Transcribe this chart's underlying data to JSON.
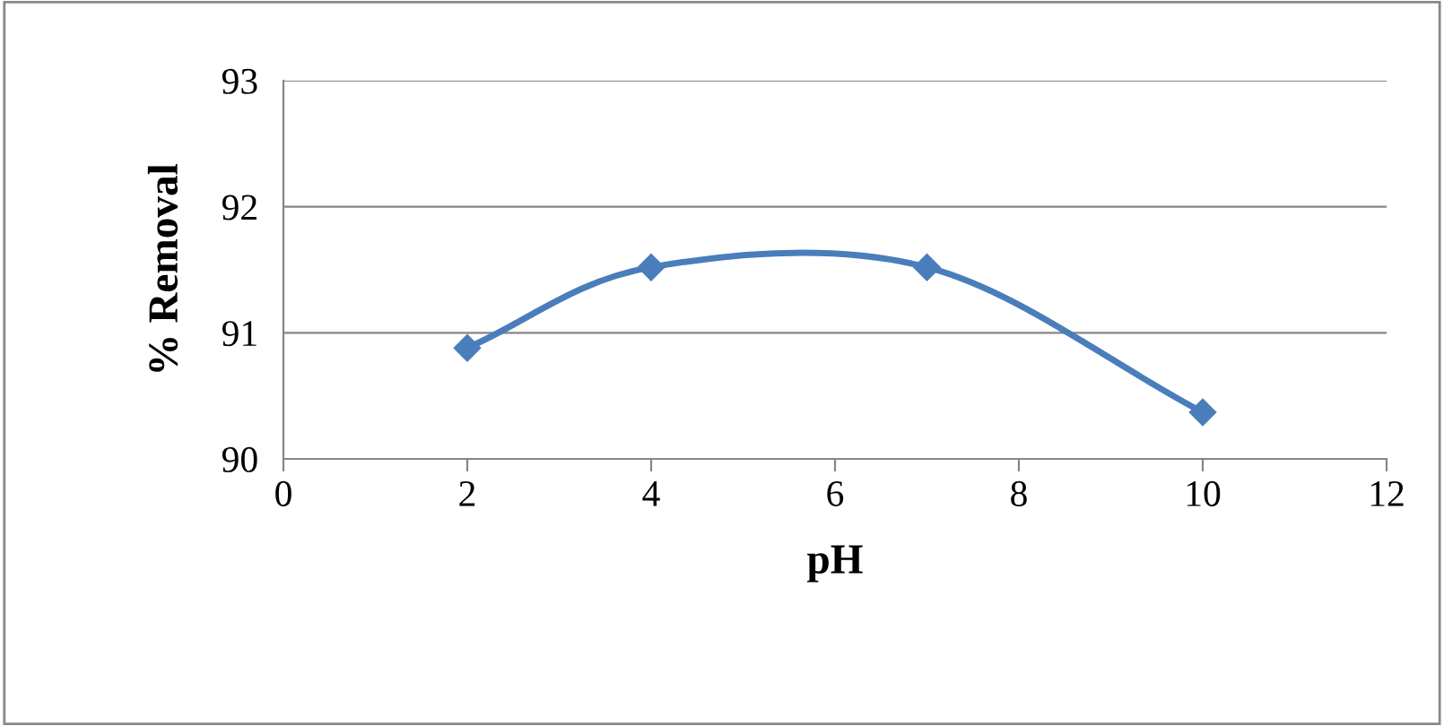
{
  "chart_data": {
    "type": "line",
    "xlabel": "pH",
    "ylabel": "% Removal",
    "x": [
      2,
      4,
      7,
      10
    ],
    "series": [
      {
        "color": "#4a7ebb",
        "values": [
          90.88,
          91.52,
          91.52,
          90.37
        ]
      }
    ],
    "xlim": [
      0,
      12
    ],
    "xticks": [
      0,
      2,
      4,
      6,
      8,
      10,
      12
    ],
    "ylim": [
      90,
      93
    ],
    "yticks": [
      90,
      91,
      92,
      93
    ],
    "grid": "y",
    "marker": "diamond",
    "line_style": "solid",
    "legend": false
  }
}
